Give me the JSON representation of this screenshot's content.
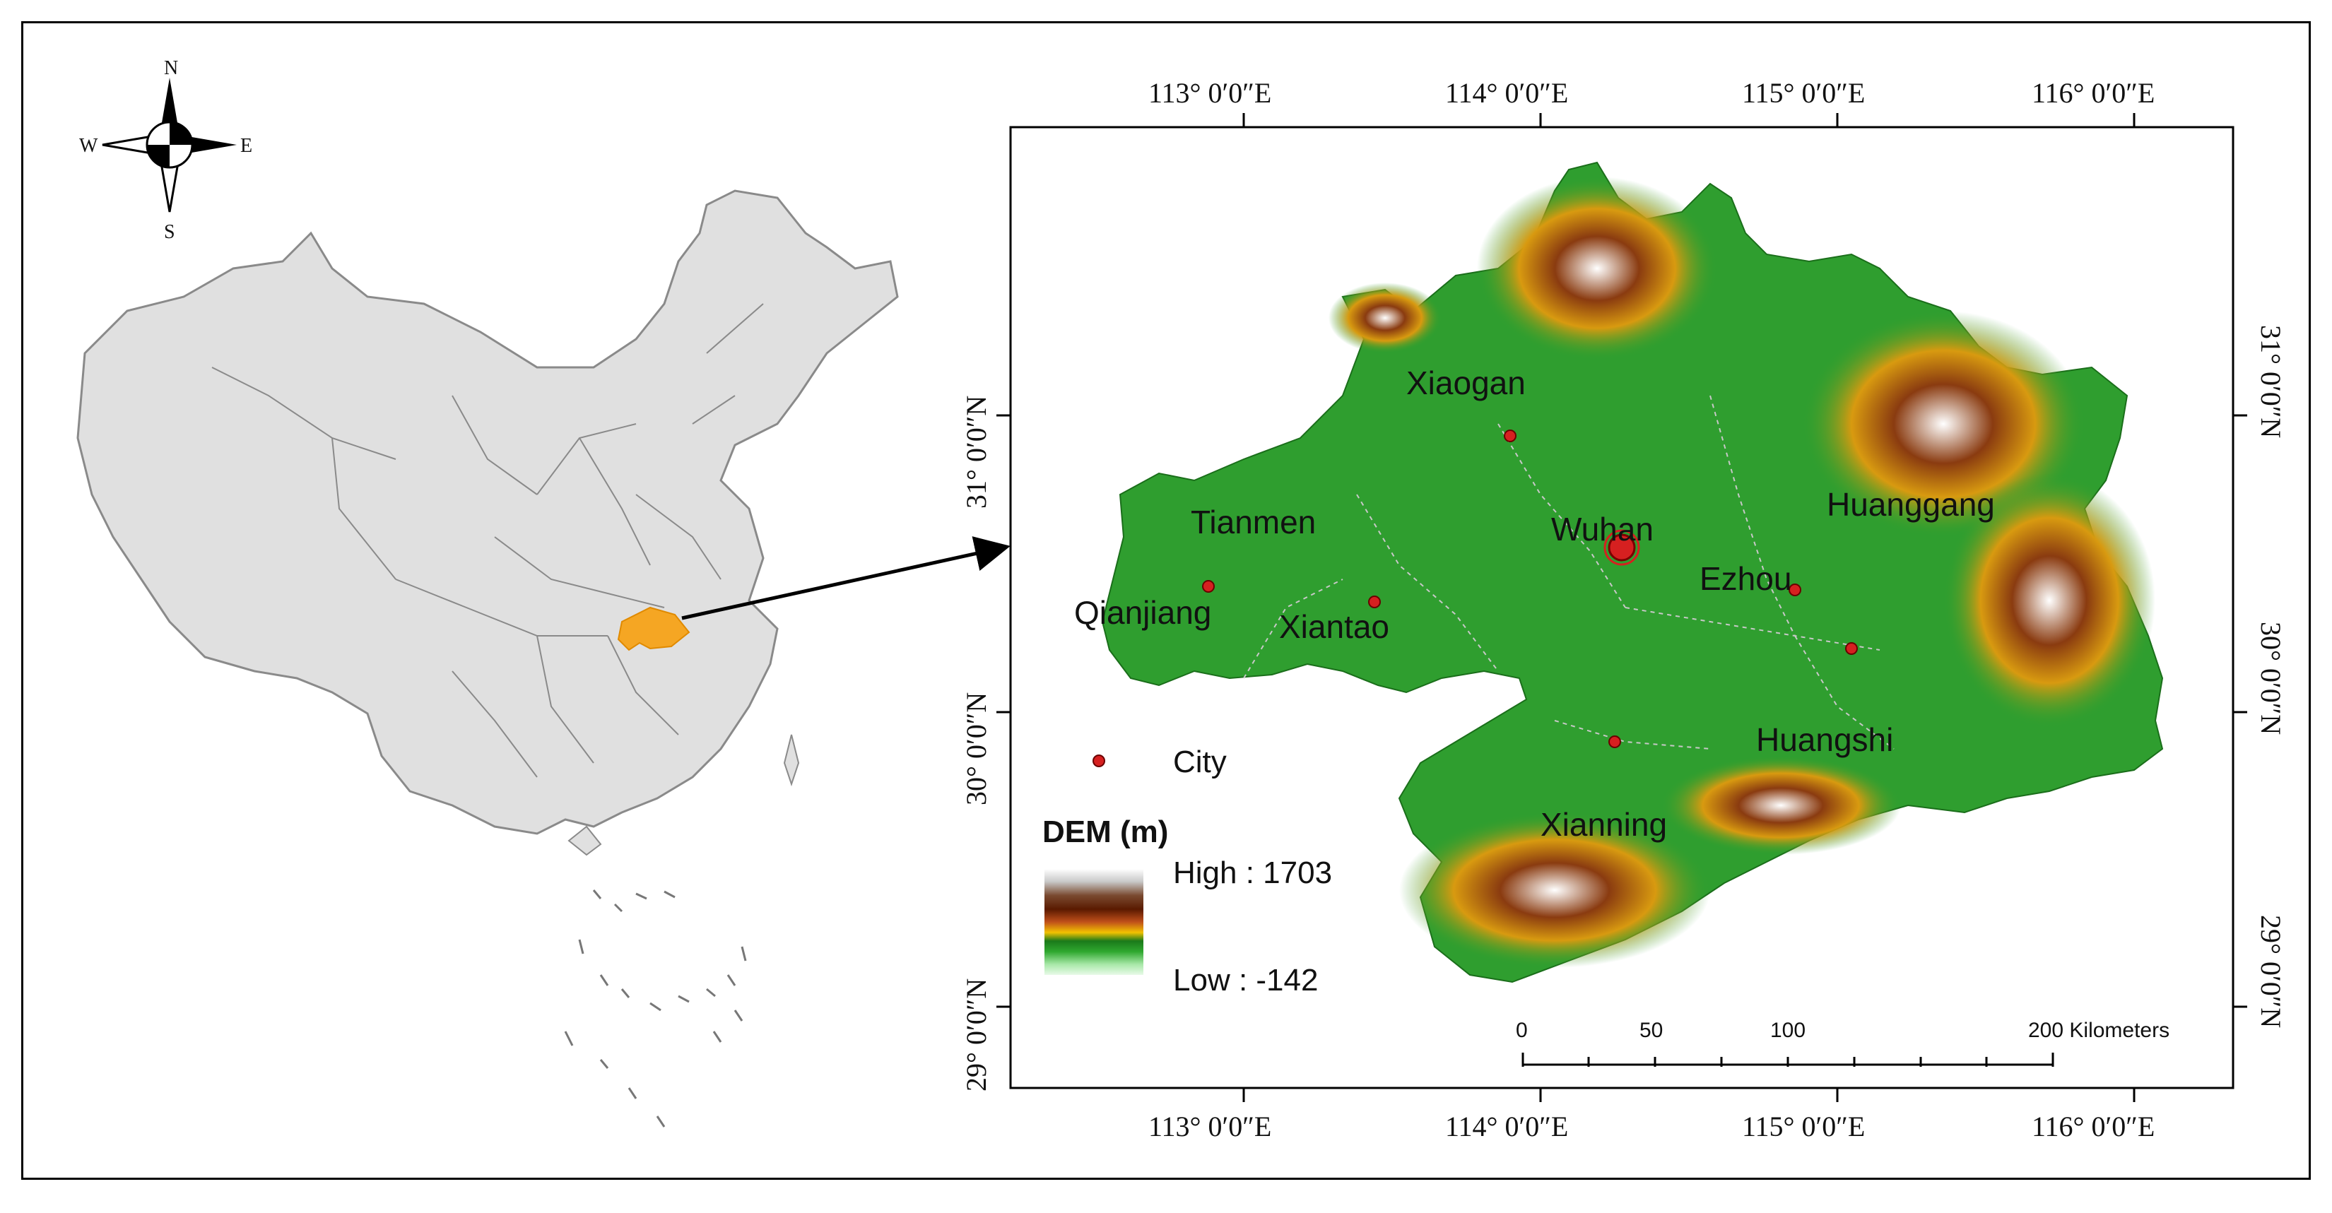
{
  "compass": {
    "north": "N",
    "south": "S",
    "west": "W",
    "east": "E"
  },
  "top_longitude_labels": [
    "113° 0′0″E",
    "114° 0′0″E",
    "115° 0′0″E",
    "116° 0′0″E"
  ],
  "bottom_longitude_labels": [
    "113° 0′0″E",
    "114° 0′0″E",
    "115° 0′0″E",
    "116° 0′0″E"
  ],
  "left_latitude_labels": [
    "31° 0′0″N",
    "30° 0′0″N",
    "29° 0′0″N"
  ],
  "right_latitude_labels": [
    "31° 0′0″N",
    "30° 0′0″N",
    "29° 0′0″N"
  ],
  "cities": [
    {
      "name": "Xiaogan"
    },
    {
      "name": "Tianmen"
    },
    {
      "name": "Wuhan"
    },
    {
      "name": "Huanggang"
    },
    {
      "name": "Ezhou"
    },
    {
      "name": "Qianjiang"
    },
    {
      "name": "Xiantao"
    },
    {
      "name": "Huangshi"
    },
    {
      "name": "Xianning"
    }
  ],
  "legend": {
    "city_label": "City",
    "dem_title": "DEM (m)",
    "high_label": "High : 1703",
    "low_label": "Low : -142",
    "colors": [
      "#d8d8d8",
      "#8b5a2b",
      "#5a1a00",
      "#b0471a",
      "#e0a000",
      "#ffd000",
      "#2e8b1f",
      "#1fa31f",
      "#7fdc7f",
      "#d8f5d8"
    ]
  },
  "scale_bar": {
    "ticks": [
      "0",
      "50",
      "100",
      "200 Kilometers"
    ]
  },
  "colors": {
    "highlight_province": "#f5a623",
    "china_fill": "#e0e0e0",
    "dem_green": "#2f9e2f",
    "city_dot": "#d62020"
  }
}
